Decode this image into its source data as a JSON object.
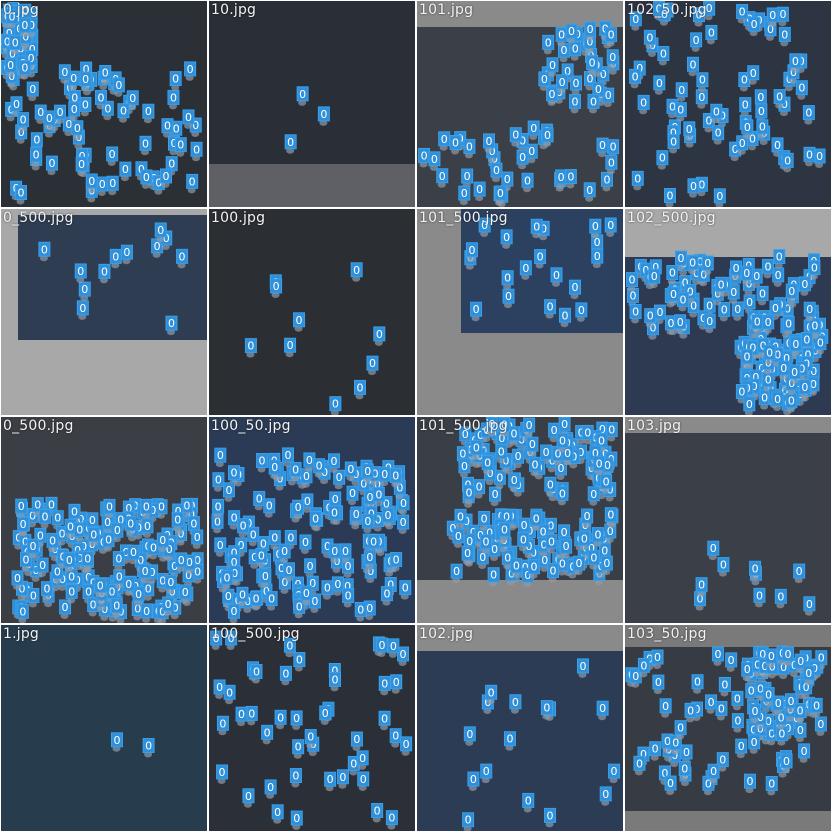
{
  "grid": {
    "background": "#ffffff",
    "box_color": "#2f8fd8",
    "tiles": [
      {
        "label": "0.jpg",
        "class": "0",
        "count": 140,
        "bg": "#2b2f36",
        "regions": []
      },
      {
        "label": "10.jpg",
        "class": "0",
        "count": 3,
        "bg": "#2a2e36",
        "regions": [
          {
            "bg": "#5e6066",
            "part": "bottom"
          }
        ]
      },
      {
        "label": "101.jpg",
        "class": "0",
        "count": 70,
        "bg": "#3b4048",
        "regions": [
          {
            "bg": "#8a8a8a",
            "part": "top"
          }
        ]
      },
      {
        "label": "102_50.jpg",
        "class": "0",
        "count": 70,
        "bg": "#2d3442",
        "regions": []
      },
      {
        "label": "0_500.jpg",
        "class": "0",
        "count": 12,
        "bg": "#2f3d52",
        "regions": [
          {
            "bg": "#a8a8a8",
            "part": "frame-bl"
          }
        ]
      },
      {
        "label": "100.jpg",
        "class": "0",
        "count": 10,
        "bg": "#2b2e33",
        "regions": []
      },
      {
        "label": "101_500.jpg",
        "class": "0",
        "count": 20,
        "bg": "#2c4060",
        "regions": [
          {
            "bg": "#8a8a8a",
            "part": "frame-br"
          }
        ]
      },
      {
        "label": "102_500.jpg",
        "class": "0",
        "count": 160,
        "bg": "#2d3a52",
        "regions": [
          {
            "bg": "#a8a8a8",
            "part": "top-strip"
          }
        ]
      },
      {
        "label": "0_500.jpg",
        "class": "0",
        "count": 160,
        "bg": "#3b3f45",
        "regions": []
      },
      {
        "label": "100_50.jpg",
        "class": "0",
        "count": 140,
        "bg": "#2c3b55",
        "regions": []
      },
      {
        "label": "101_500.jpg",
        "class": "0",
        "count": 170,
        "bg": "#3a3f47",
        "regions": [
          {
            "bg": "#8a8a8a",
            "part": "bottom"
          }
        ]
      },
      {
        "label": "103.jpg",
        "class": "0",
        "count": 10,
        "bg": "#3b3f47",
        "regions": [
          {
            "bg": "#8a8a8a",
            "part": "top-thin"
          }
        ]
      },
      {
        "label": "1.jpg",
        "class": "0",
        "count": 2,
        "bg": "#273d4e",
        "regions": []
      },
      {
        "label": "100_500.jpg",
        "class": "0",
        "count": 45,
        "bg": "#2b2f37",
        "regions": []
      },
      {
        "label": "102.jpg",
        "class": "0",
        "count": 16,
        "bg": "#2d3c55",
        "regions": [
          {
            "bg": "#8a8a8a",
            "part": "top"
          }
        ]
      },
      {
        "label": "103_50.jpg",
        "class": "0",
        "count": 110,
        "bg": "#373c44",
        "regions": [
          {
            "bg": "#7a7a7a",
            "part": "top-bottom"
          }
        ]
      }
    ]
  }
}
